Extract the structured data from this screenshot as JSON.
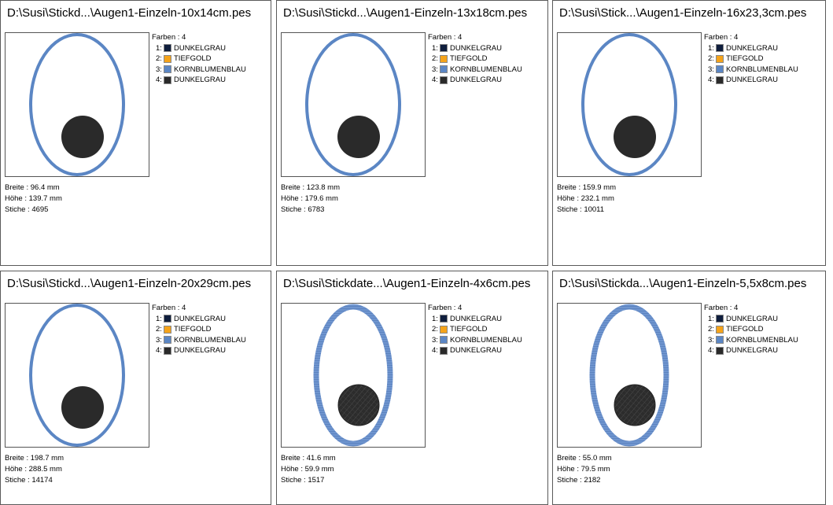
{
  "colors": {
    "dunkelgrau_navy": "#0f1e3d",
    "tiefgold": "#f5a31a",
    "kornblumenblau": "#5b86c4",
    "dunkelgrau_dark": "#2a2a2a"
  },
  "labels": {
    "farben_prefix": "Farben : ",
    "breite_prefix": "Breite : ",
    "hoehe_prefix": "Höhe : ",
    "stiche_prefix": "Stiche : "
  },
  "designs": [
    {
      "title": "D:\\Susi\\Stickd...\\Augen1-Einzeln-10x14cm.pes",
      "farben": "4",
      "thread_list": [
        {
          "num": "1:",
          "name": "DUNKELGRAU",
          "color": "#0f1e3d"
        },
        {
          "num": "2:",
          "name": "TIEFGOLD",
          "color": "#f5a31a"
        },
        {
          "num": "3:",
          "name": "KORNBLUMENBLAU",
          "color": "#5b86c4"
        },
        {
          "num": "4:",
          "name": "DUNKELGRAU",
          "color": "#2a2a2a"
        }
      ],
      "breite": "96.4 mm",
      "hoehe": "139.7 mm",
      "stiche": "4695",
      "style": "smooth"
    },
    {
      "title": "D:\\Susi\\Stickd...\\Augen1-Einzeln-13x18cm.pes",
      "farben": "4",
      "thread_list": [
        {
          "num": "1:",
          "name": "DUNKELGRAU",
          "color": "#0f1e3d"
        },
        {
          "num": "2:",
          "name": "TIEFGOLD",
          "color": "#f5a31a"
        },
        {
          "num": "3:",
          "name": "KORNBLUMENBLAU",
          "color": "#5b86c4"
        },
        {
          "num": "4:",
          "name": "DUNKELGRAU",
          "color": "#2a2a2a"
        }
      ],
      "breite": "123.8 mm",
      "hoehe": "179.6 mm",
      "stiche": "6783",
      "style": "smooth"
    },
    {
      "title": "D:\\Susi\\Stick...\\Augen1-Einzeln-16x23,3cm.pes",
      "farben": "4",
      "thread_list": [
        {
          "num": "1:",
          "name": "DUNKELGRAU",
          "color": "#0f1e3d"
        },
        {
          "num": "2:",
          "name": "TIEFGOLD",
          "color": "#f5a31a"
        },
        {
          "num": "3:",
          "name": "KORNBLUMENBLAU",
          "color": "#5b86c4"
        },
        {
          "num": "4:",
          "name": "DUNKELGRAU",
          "color": "#2a2a2a"
        }
      ],
      "breite": "159.9 mm",
      "hoehe": "232.1 mm",
      "stiche": "10011",
      "style": "smooth"
    },
    {
      "title": "D:\\Susi\\Stickd...\\Augen1-Einzeln-20x29cm.pes",
      "farben": "4",
      "thread_list": [
        {
          "num": "1:",
          "name": "DUNKELGRAU",
          "color": "#0f1e3d"
        },
        {
          "num": "2:",
          "name": "TIEFGOLD",
          "color": "#f5a31a"
        },
        {
          "num": "3:",
          "name": "KORNBLUMENBLAU",
          "color": "#5b86c4"
        },
        {
          "num": "4:",
          "name": "DUNKELGRAU",
          "color": "#2a2a2a"
        }
      ],
      "breite": "198.7 mm",
      "hoehe": "288.5 mm",
      "stiche": "14174",
      "style": "smooth"
    },
    {
      "title": "D:\\Susi\\Stickdate...\\Augen1-Einzeln-4x6cm.pes",
      "farben": "4",
      "thread_list": [
        {
          "num": "1:",
          "name": "DUNKELGRAU",
          "color": "#0f1e3d"
        },
        {
          "num": "2:",
          "name": "TIEFGOLD",
          "color": "#f5a31a"
        },
        {
          "num": "3:",
          "name": "KORNBLUMENBLAU",
          "color": "#5b86c4"
        },
        {
          "num": "4:",
          "name": "DUNKELGRAU",
          "color": "#2a2a2a"
        }
      ],
      "breite": "41.6 mm",
      "hoehe": "59.9 mm",
      "stiche": "1517",
      "style": "stitched"
    },
    {
      "title": "D:\\Susi\\Stickda...\\Augen1-Einzeln-5,5x8cm.pes",
      "farben": "4",
      "thread_list": [
        {
          "num": "1:",
          "name": "DUNKELGRAU",
          "color": "#0f1e3d"
        },
        {
          "num": "2:",
          "name": "TIEFGOLD",
          "color": "#f5a31a"
        },
        {
          "num": "3:",
          "name": "KORNBLUMENBLAU",
          "color": "#5b86c4"
        },
        {
          "num": "4:",
          "name": "DUNKELGRAU",
          "color": "#2a2a2a"
        }
      ],
      "breite": "55.0 mm",
      "hoehe": "79.5 mm",
      "stiche": "2182",
      "style": "stitched"
    }
  ]
}
